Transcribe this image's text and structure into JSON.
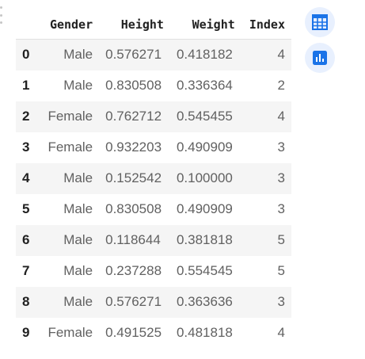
{
  "dataframe": {
    "index_header": "",
    "columns": [
      "Gender",
      "Height",
      "Weight",
      "Index"
    ],
    "rows": [
      {
        "index": "0",
        "gender": "Male",
        "height": "0.576271",
        "weight": "0.418182",
        "idx": "4"
      },
      {
        "index": "1",
        "gender": "Male",
        "height": "0.830508",
        "weight": "0.336364",
        "idx": "2"
      },
      {
        "index": "2",
        "gender": "Female",
        "height": "0.762712",
        "weight": "0.545455",
        "idx": "4"
      },
      {
        "index": "3",
        "gender": "Female",
        "height": "0.932203",
        "weight": "0.490909",
        "idx": "3"
      },
      {
        "index": "4",
        "gender": "Male",
        "height": "0.152542",
        "weight": "0.100000",
        "idx": "3"
      },
      {
        "index": "5",
        "gender": "Male",
        "height": "0.830508",
        "weight": "0.490909",
        "idx": "3"
      },
      {
        "index": "6",
        "gender": "Male",
        "height": "0.118644",
        "weight": "0.381818",
        "idx": "5"
      },
      {
        "index": "7",
        "gender": "Male",
        "height": "0.237288",
        "weight": "0.554545",
        "idx": "5"
      },
      {
        "index": "8",
        "gender": "Male",
        "height": "0.576271",
        "weight": "0.363636",
        "idx": "3"
      },
      {
        "index": "9",
        "gender": "Female",
        "height": "0.491525",
        "weight": "0.481818",
        "idx": "4"
      }
    ]
  },
  "side_actions": {
    "table_icon": "table-grid-icon",
    "chart_icon": "bar-chart-icon",
    "accent_color": "#1a73e8",
    "button_bg": "#e8f0fe"
  },
  "cell_menu_icon": "more-vert-icon"
}
